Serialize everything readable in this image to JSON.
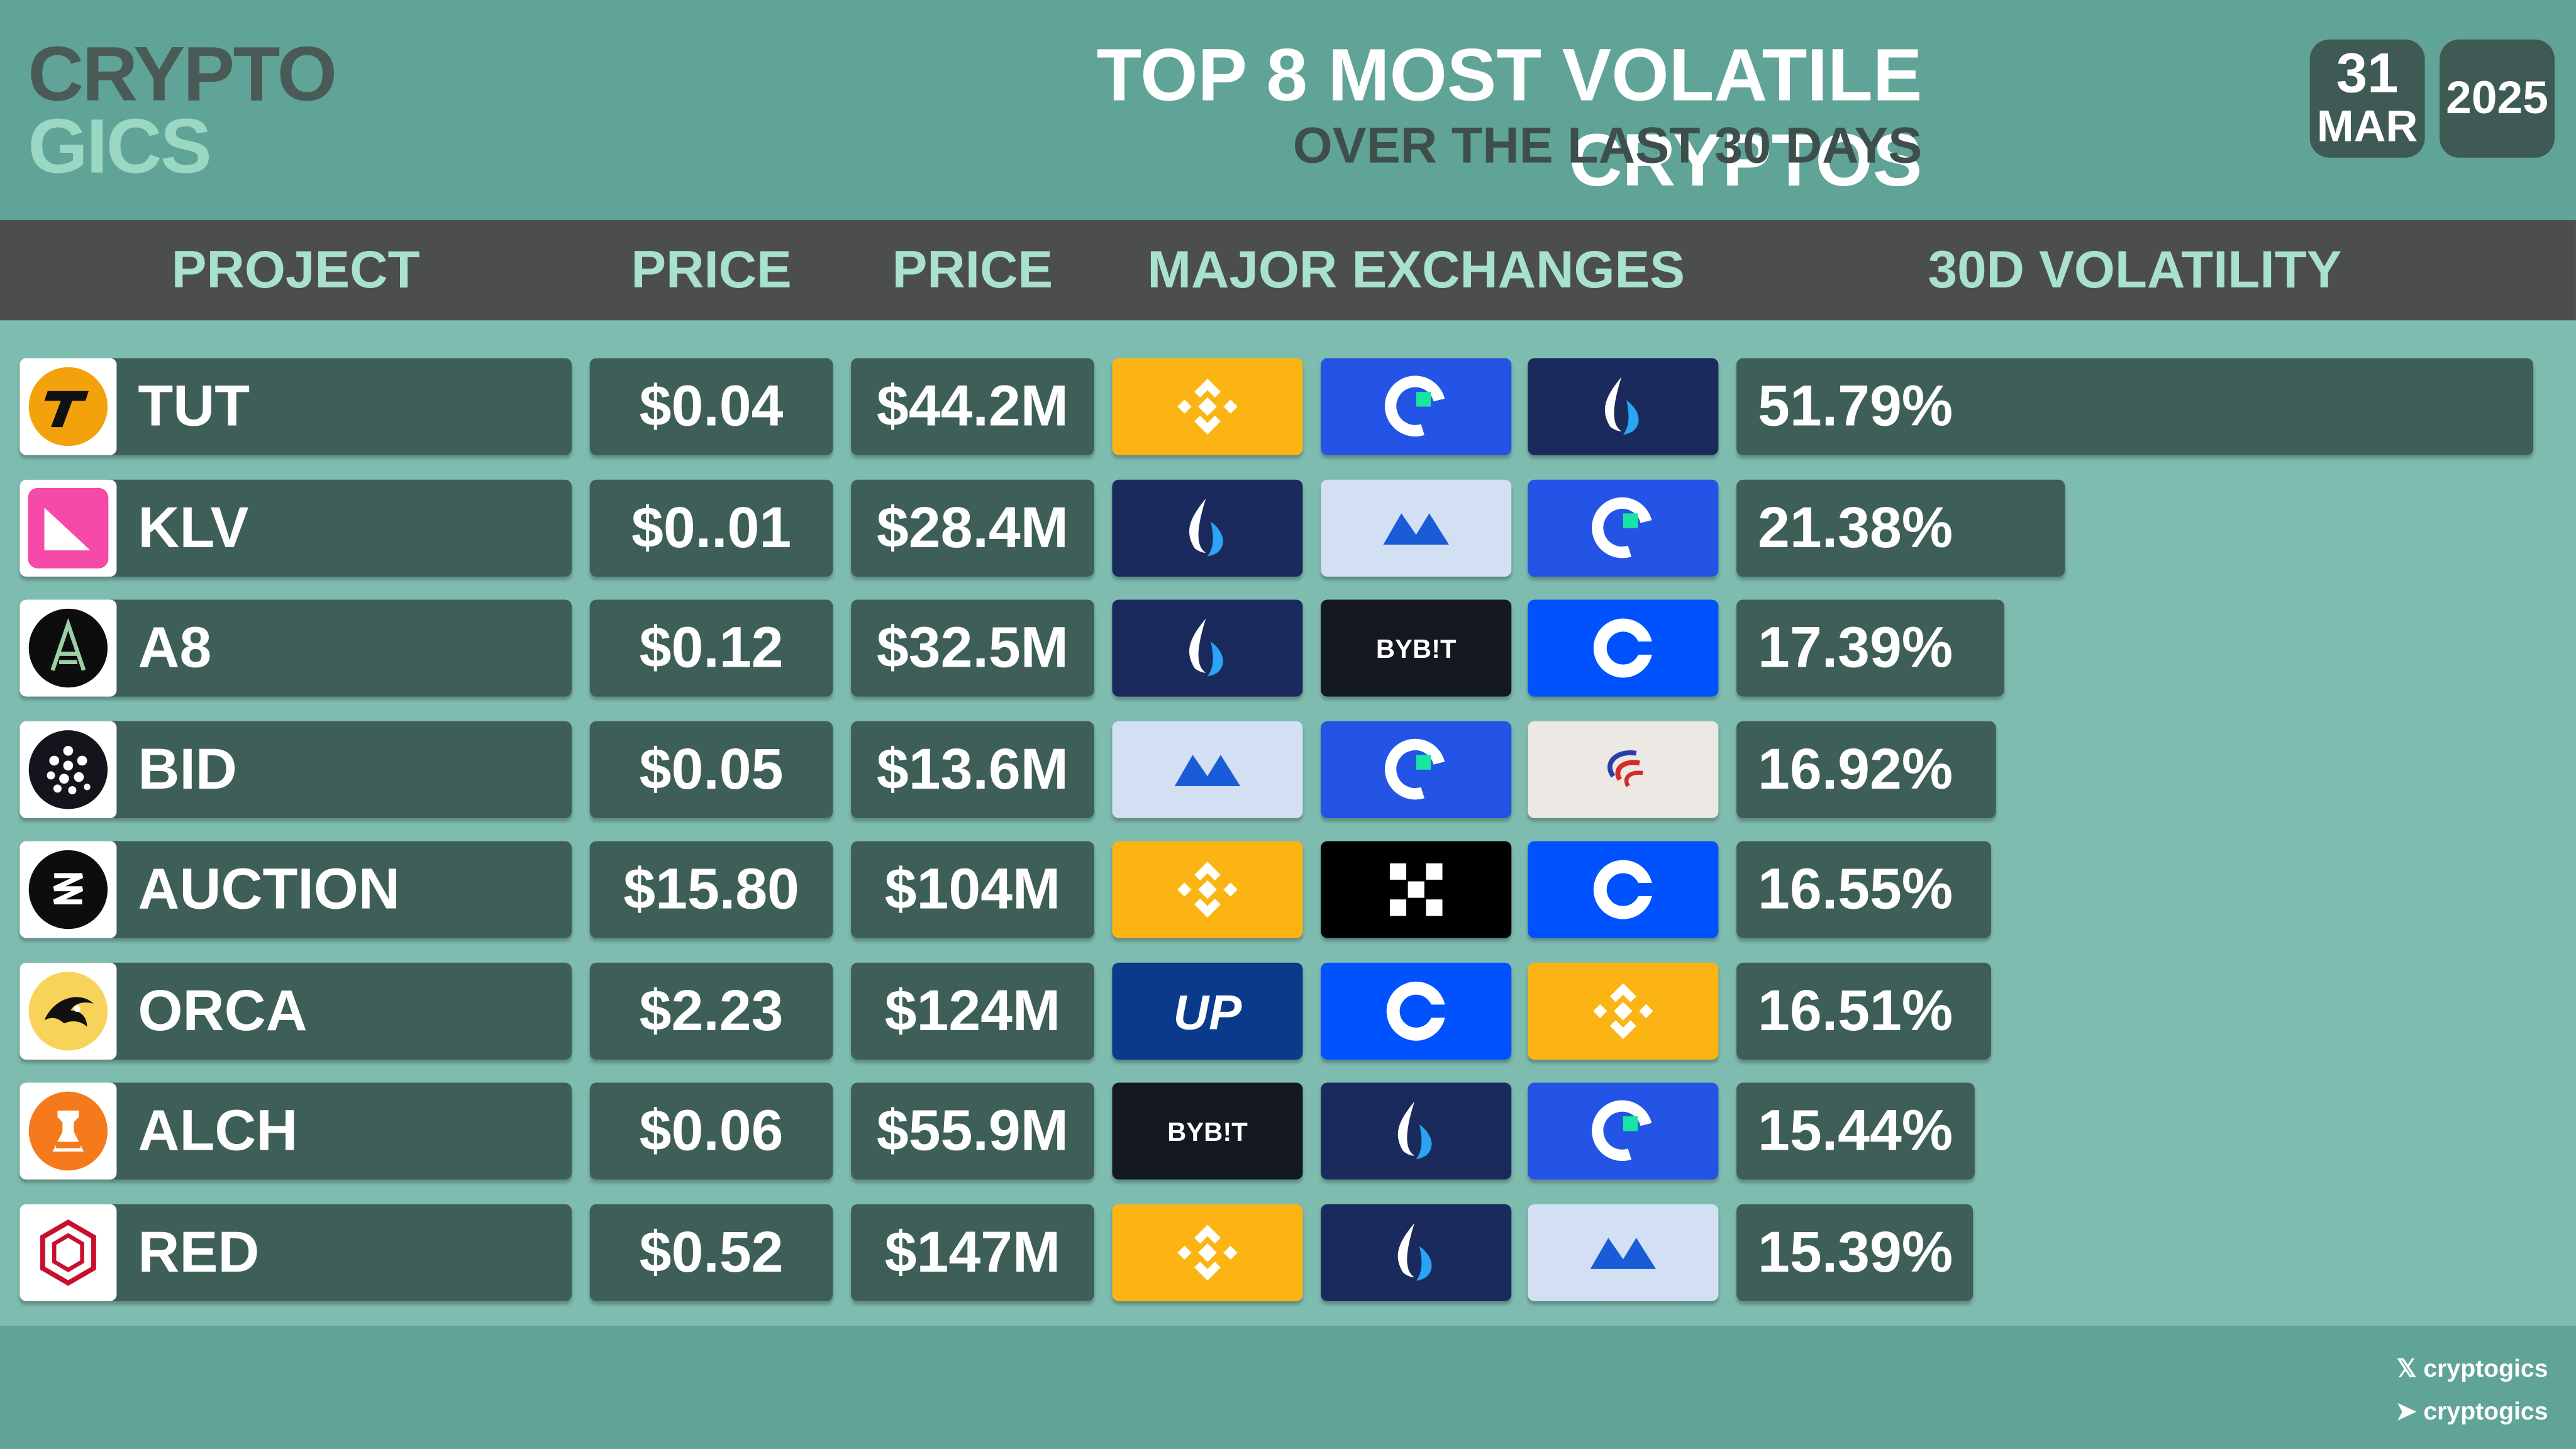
{
  "brand": {
    "line1": "CRYPTO",
    "line2": "GICS"
  },
  "header": {
    "title": "TOP 8 MOST VOLATILE CRYPTOS",
    "subtitle": "OVER THE LAST 30 DAYS",
    "date_day": "31",
    "date_month": "MAR",
    "date_year": "2025"
  },
  "columns": [
    "PROJECT",
    "PRICE",
    "PRICE",
    "MAJOR EXCHANGES",
    "30D VOLATILITY"
  ],
  "rows": [
    {
      "name": "TUT",
      "price": "$0.04",
      "mcap": "$44.2M",
      "exchanges": [
        "binance",
        "gate",
        "htx"
      ],
      "volatility": "51.79%",
      "icon": "tut-logo"
    },
    {
      "name": "KLV",
      "price": "$0..01",
      "mcap": "$28.4M",
      "exchanges": [
        "htx",
        "mexc",
        "gate"
      ],
      "volatility": "21.38%",
      "icon": "klv-logo"
    },
    {
      "name": "A8",
      "price": "$0.12",
      "mcap": "$32.5M",
      "exchanges": [
        "htx",
        "bybit",
        "coinbase"
      ],
      "volatility": "17.39%",
      "icon": "a8-logo"
    },
    {
      "name": "BID",
      "price": "$0.05",
      "mcap": "$13.6M",
      "exchanges": [
        "mexc",
        "gate",
        "crossex"
      ],
      "volatility": "16.92%",
      "icon": "bid-logo"
    },
    {
      "name": "AUCTION",
      "price": "$15.80",
      "mcap": "$104M",
      "exchanges": [
        "binance",
        "okx",
        "coinbase"
      ],
      "volatility": "16.55%",
      "icon": "auction-logo"
    },
    {
      "name": "ORCA",
      "price": "$2.23",
      "mcap": "$124M",
      "exchanges": [
        "upbit",
        "coinbase",
        "binance"
      ],
      "volatility": "16.51%",
      "icon": "orca-logo"
    },
    {
      "name": "ALCH",
      "price": "$0.06",
      "mcap": "$55.9M",
      "exchanges": [
        "bybit",
        "htx",
        "gate"
      ],
      "volatility": "15.44%",
      "icon": "alch-logo"
    },
    {
      "name": "RED",
      "price": "$0.52",
      "mcap": "$147M",
      "exchanges": [
        "binance",
        "htx",
        "mexc"
      ],
      "volatility": "15.39%",
      "icon": "red-logo"
    }
  ],
  "exchange_styles": {
    "binance": {
      "bg": "#fcb414",
      "fg": "#ffffff"
    },
    "gate": {
      "bg": "#2354e6",
      "fg": "#ffffff",
      "accent": "#17e6a1"
    },
    "htx": {
      "bg": "#1b2a5c",
      "fg": "#ffffff",
      "accent": "#2aa4f4"
    },
    "mexc": {
      "bg": "#d3e0f3",
      "fg": "#1a5cd8"
    },
    "bybit": {
      "bg": "#141821",
      "fg": "#ffffff",
      "accent": "#f7a600",
      "text": "BYB!T"
    },
    "coinbase": {
      "bg": "#0052ff",
      "fg": "#ffffff"
    },
    "crossex": {
      "bg": "#ece8e3",
      "fg": "#d42a2a",
      "accent": "#2a3ea8"
    },
    "okx": {
      "bg": "#000000",
      "fg": "#ffffff"
    },
    "upbit": {
      "bg": "#0a3a8a",
      "fg": "#ffffff",
      "text": "UP"
    }
  },
  "chart_data": {
    "type": "bar",
    "categories": [
      "TUT",
      "KLV",
      "A8",
      "BID",
      "AUCTION",
      "ORCA",
      "ALCH",
      "RED"
    ],
    "values": [
      51.79,
      21.38,
      17.39,
      16.92,
      16.55,
      16.51,
      15.44,
      15.39
    ],
    "ylabel": "30D VOLATILITY",
    "orientation": "horizontal",
    "bar_color": "#3e5f58"
  },
  "footer": {
    "x_handle": "cryptogics",
    "telegram_handle": "cryptogics"
  }
}
